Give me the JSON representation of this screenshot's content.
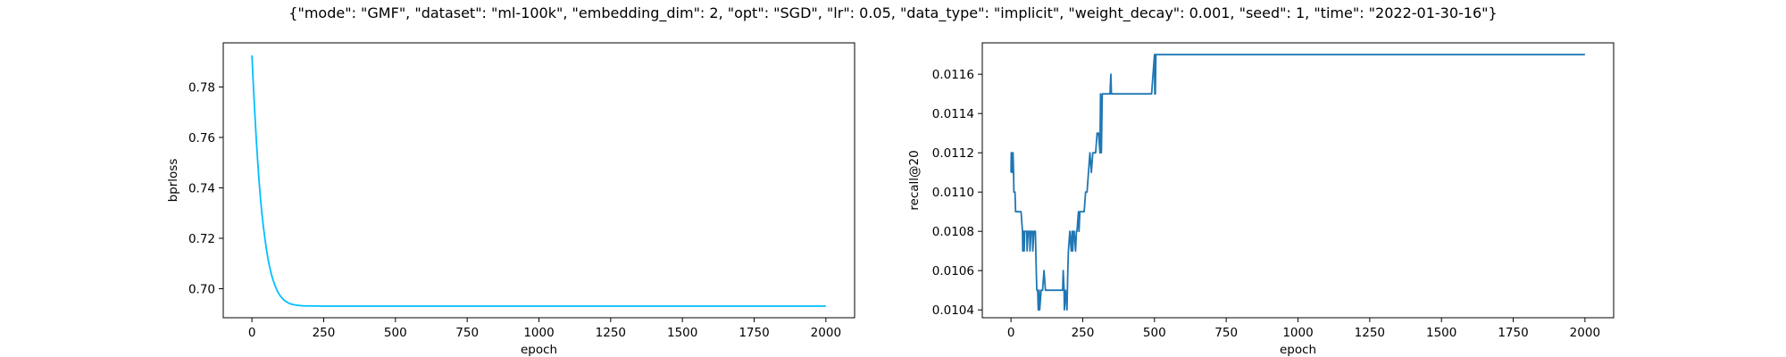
{
  "figure": {
    "suptitle": "{\"mode\": \"GMF\", \"dataset\": \"ml-100k\", \"embedding_dim\": 2, \"opt\": \"SGD\", \"lr\": 0.05, \"data_type\": \"implicit\", \"weight_decay\": 0.001, \"seed\": 1, \"time\": \"2022-01-30-16\"}"
  },
  "chart_data": [
    {
      "type": "line",
      "title": "",
      "xlabel": "epoch",
      "ylabel": "bprloss",
      "xlim": [
        -100,
        2100
      ],
      "ylim": [
        0.6885,
        0.7975
      ],
      "xticks": [
        0,
        250,
        500,
        750,
        1000,
        1250,
        1500,
        1750,
        2000
      ],
      "yticks": [
        0.7,
        0.72,
        0.74,
        0.76,
        0.78
      ],
      "ytick_labels": [
        "0.70",
        "0.72",
        "0.74",
        "0.76",
        "0.78"
      ],
      "grid": false,
      "series": [
        {
          "color": "#00bfff",
          "x": [
            0,
            5,
            10,
            15,
            20,
            25,
            30,
            35,
            40,
            45,
            50,
            55,
            60,
            65,
            70,
            75,
            80,
            85,
            90,
            95,
            100,
            110,
            120,
            130,
            140,
            150,
            160,
            170,
            180,
            200,
            250,
            300,
            400,
            500,
            600,
            800,
            1000,
            1200,
            1400,
            1600,
            1800,
            2000
          ],
          "y": [
            0.7925,
            0.7805,
            0.7695,
            0.7595,
            0.7505,
            0.7425,
            0.7355,
            0.7295,
            0.7245,
            0.72,
            0.716,
            0.7125,
            0.7095,
            0.707,
            0.7048,
            0.703,
            0.7014,
            0.7,
            0.6988,
            0.6978,
            0.697,
            0.6957,
            0.6948,
            0.6942,
            0.6938,
            0.6936,
            0.6934,
            0.6933,
            0.6932,
            0.6932,
            0.6931,
            0.6931,
            0.6931,
            0.6931,
            0.6931,
            0.6931,
            0.6931,
            0.6931,
            0.6931,
            0.6931,
            0.6931,
            0.6931
          ]
        }
      ]
    },
    {
      "type": "line",
      "title": "",
      "xlabel": "epoch",
      "ylabel": "recall@20",
      "xlim": [
        -100,
        2100
      ],
      "ylim": [
        0.01036,
        0.01176
      ],
      "xticks": [
        0,
        250,
        500,
        750,
        1000,
        1250,
        1500,
        1750,
        2000
      ],
      "yticks": [
        0.0104,
        0.0106,
        0.0108,
        0.011,
        0.0112,
        0.0114,
        0.0116
      ],
      "ytick_labels": [
        "0.0104",
        "0.0106",
        "0.0108",
        "0.0110",
        "0.0112",
        "0.0114",
        "0.0116"
      ],
      "grid": false,
      "series": [
        {
          "color": "#1f77b4",
          "x": [
            0,
            1,
            3,
            4,
            6,
            7,
            9,
            10,
            12,
            14,
            16,
            18,
            20,
            25,
            30,
            35,
            40,
            41,
            45,
            46,
            48,
            52,
            55,
            56,
            60,
            62,
            65,
            66,
            70,
            72,
            75,
            76,
            80,
            85,
            88,
            90,
            93,
            95,
            98,
            100,
            105,
            108,
            110,
            115,
            120,
            125,
            128,
            130,
            135,
            140,
            145,
            150,
            155,
            160,
            165,
            170,
            175,
            180,
            182,
            185,
            186,
            190,
            195,
            198,
            200,
            205,
            210,
            213,
            215,
            218,
            220,
            225,
            228,
            230,
            235,
            237,
            240,
            245,
            250,
            255,
            260,
            265,
            270,
            275,
            280,
            285,
            290,
            295,
            300,
            305,
            310,
            312,
            315,
            318,
            320,
            325,
            330,
            335,
            340,
            342,
            345,
            348,
            350,
            352,
            355,
            360,
            365,
            370,
            375,
            380,
            385,
            390,
            395,
            400,
            420,
            440,
            460,
            480,
            490,
            500,
            501,
            502,
            503,
            505,
            507,
            510,
            600,
            800,
            1000,
            1200,
            1400,
            1600,
            1800,
            2000
          ],
          "y": [
            0.0111,
            0.0112,
            0.0111,
            0.0112,
            0.0111,
            0.0112,
            0.0111,
            0.011,
            0.011,
            0.011,
            0.0109,
            0.0109,
            0.0109,
            0.0109,
            0.0109,
            0.0109,
            0.0108,
            0.0107,
            0.0108,
            0.0107,
            0.0108,
            0.0108,
            0.0108,
            0.0107,
            0.0108,
            0.0108,
            0.0108,
            0.0107,
            0.0108,
            0.0108,
            0.0108,
            0.0107,
            0.0108,
            0.0108,
            0.0106,
            0.0105,
            0.0105,
            0.0104,
            0.0105,
            0.0104,
            0.0105,
            0.0105,
            0.0105,
            0.0106,
            0.0105,
            0.0105,
            0.0105,
            0.0105,
            0.0105,
            0.0105,
            0.0105,
            0.0105,
            0.0105,
            0.0105,
            0.0105,
            0.0105,
            0.0105,
            0.0105,
            0.0106,
            0.0105,
            0.0104,
            0.0105,
            0.0104,
            0.0106,
            0.0107,
            0.0108,
            0.0107,
            0.0108,
            0.0107,
            0.0108,
            0.0108,
            0.0107,
            0.0108,
            0.0108,
            0.0109,
            0.0108,
            0.0109,
            0.0109,
            0.0109,
            0.0109,
            0.011,
            0.011,
            0.0111,
            0.0112,
            0.0111,
            0.0112,
            0.0112,
            0.0112,
            0.0113,
            0.0113,
            0.0112,
            0.0115,
            0.0112,
            0.0115,
            0.0115,
            0.0115,
            0.0115,
            0.0115,
            0.0115,
            0.0115,
            0.0115,
            0.0116,
            0.0115,
            0.0115,
            0.0115,
            0.0115,
            0.0115,
            0.0115,
            0.0115,
            0.0115,
            0.0115,
            0.0115,
            0.0115,
            0.0115,
            0.0115,
            0.0115,
            0.0115,
            0.0115,
            0.0115,
            0.0117,
            0.0115,
            0.0117,
            0.0115,
            0.0117,
            0.0117,
            0.0117,
            0.0117,
            0.0117,
            0.0117,
            0.0117,
            0.0117,
            0.0117,
            0.0117,
            0.0117
          ]
        }
      ]
    }
  ]
}
